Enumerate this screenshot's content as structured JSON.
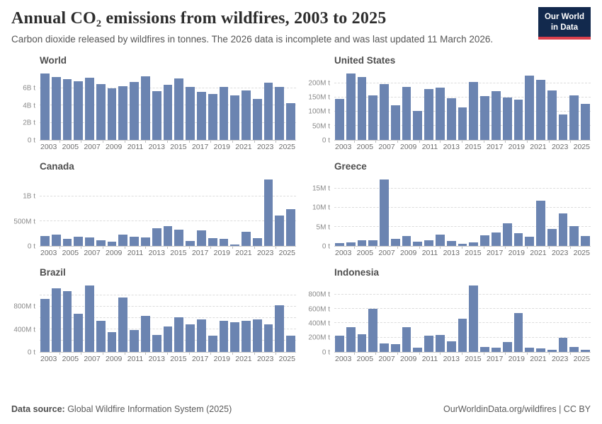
{
  "header": {
    "title": "Annual CO₂ emissions from wildfires, 2003 to 2025",
    "subtitle": "Carbon dioxide released by wildfires in tonnes. The 2026 data is incomplete and was last updated 11 March 2026.",
    "logo": {
      "line1": "Our World",
      "line2": "in Data"
    }
  },
  "footer": {
    "source_label": "Data source:",
    "source_text": " Global Wildfire Information System (2025)",
    "right_text": "OurWorldinData.org/wildfires | CC BY"
  },
  "colors": {
    "bar": "#6b84b1",
    "logo_navy": "#12294d",
    "logo_red": "#d9404d",
    "gridline": "#dcdcdc"
  },
  "chart_data": {
    "type": "bar",
    "layout": "2x3 small multiples, shared x axis years",
    "x": [
      2003,
      2004,
      2005,
      2006,
      2007,
      2008,
      2009,
      2010,
      2011,
      2012,
      2013,
      2014,
      2015,
      2016,
      2017,
      2018,
      2019,
      2020,
      2021,
      2022,
      2023,
      2024,
      2025
    ],
    "x_label_years": [
      2003,
      2005,
      2007,
      2009,
      2011,
      2013,
      2015,
      2017,
      2019,
      2021,
      2023,
      2025
    ],
    "zero_label": "0 t",
    "grid": "horizontal dashed",
    "charts": [
      {
        "title": "World",
        "unit": "billion tonnes",
        "ymax": 8,
        "gridlines": [
          {
            "value": 2,
            "label": "2B t"
          },
          {
            "value": 4,
            "label": "4B t"
          },
          {
            "value": 6,
            "label": "6B t"
          }
        ],
        "values": [
          7.75,
          7.35,
          7.1,
          6.85,
          7.25,
          6.5,
          6.05,
          6.3,
          6.75,
          7.4,
          5.7,
          6.4,
          7.2,
          6.2,
          5.6,
          5.35,
          6.15,
          5.15,
          5.8,
          4.8,
          6.7,
          6.15,
          4.3
        ]
      },
      {
        "title": "United States",
        "unit": "million tonnes",
        "ymax": 242,
        "gridlines": [
          {
            "value": 50,
            "label": "50M t"
          },
          {
            "value": 100,
            "label": "100M t"
          },
          {
            "value": 150,
            "label": "150M t"
          },
          {
            "value": 200,
            "label": "200M t"
          }
        ],
        "values": [
          145,
          235,
          222,
          157,
          198,
          123,
          188,
          102,
          180,
          185,
          148,
          114,
          204,
          154,
          172,
          150,
          143,
          228,
          213,
          175,
          90,
          158,
          128
        ]
      },
      {
        "title": "Canada",
        "unit": "million tonnes",
        "ymax": 1390,
        "gridlines": [
          {
            "value": 500,
            "label": "500M t"
          },
          {
            "value": 1000,
            "label": "1B t"
          }
        ],
        "values": [
          195,
          230,
          135,
          185,
          175,
          110,
          85,
          235,
          180,
          165,
          360,
          400,
          330,
          105,
          310,
          160,
          148,
          25,
          285,
          155,
          1340,
          620,
          740
        ]
      },
      {
        "title": "Greece",
        "unit": "million tonnes",
        "ymax": 17.9,
        "gridlines": [
          {
            "value": 5,
            "label": "5M t"
          },
          {
            "value": 10,
            "label": "10M t"
          },
          {
            "value": 15,
            "label": "15M t"
          }
        ],
        "values": [
          0.75,
          0.95,
          1.4,
          1.5,
          17.3,
          1.8,
          2.6,
          1.0,
          1.4,
          2.9,
          1.2,
          0.6,
          0.9,
          2.7,
          3.5,
          5.8,
          3.3,
          2.3,
          11.8,
          4.4,
          8.4,
          5.1,
          2.5
        ]
      },
      {
        "title": "Brazil",
        "unit": "million tonnes",
        "ymax": 1210,
        "gridlines": [
          {
            "value": 200,
            "label": ""
          },
          {
            "value": 400,
            "label": "400M t"
          },
          {
            "value": 600,
            "label": ""
          },
          {
            "value": 800,
            "label": "800M t"
          },
          {
            "value": 1000,
            "label": ""
          }
        ],
        "values": [
          940,
          1125,
          1070,
          675,
          1170,
          550,
          345,
          960,
          390,
          640,
          300,
          450,
          610,
          490,
          575,
          290,
          550,
          525,
          550,
          575,
          490,
          820,
          280
        ]
      },
      {
        "title": "Indonesia",
        "unit": "million tonnes",
        "ymax": 960,
        "gridlines": [
          {
            "value": 200,
            "label": "200M t"
          },
          {
            "value": 400,
            "label": "400M t"
          },
          {
            "value": 600,
            "label": "600M t"
          },
          {
            "value": 800,
            "label": "800M t"
          }
        ],
        "values": [
          225,
          350,
          245,
          605,
          115,
          110,
          350,
          55,
          225,
          235,
          145,
          465,
          930,
          72,
          62,
          141,
          545,
          55,
          48,
          31,
          200,
          69,
          30
        ]
      }
    ]
  }
}
